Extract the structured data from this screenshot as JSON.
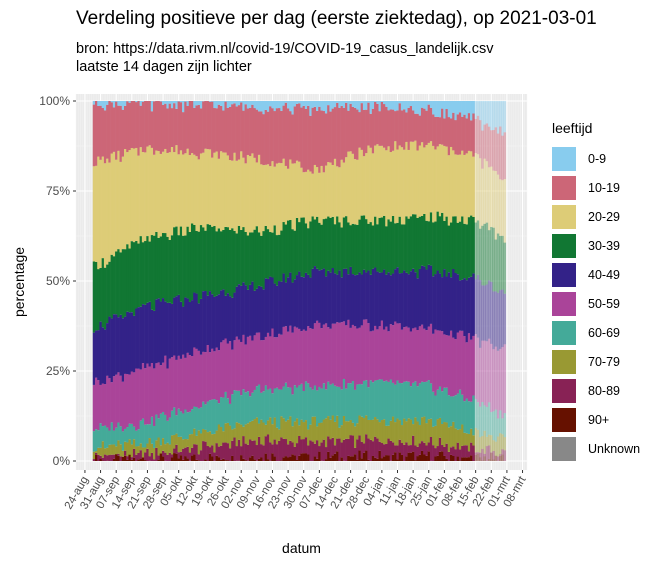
{
  "title": "Verdeling positieve per dag (eerste ziektedag), op 2021-03-01",
  "subtitle_lines": [
    "bron: https://data.rivm.nl/covid-19/COVID-19_casus_landelijk.csv",
    "laatste 14 dagen zijn lichter"
  ],
  "chart_data": {
    "type": "area",
    "xlabel": "datum",
    "ylabel": "percentage",
    "ylim": [
      0,
      100
    ],
    "y_ticks": [
      "0%",
      "25%",
      "50%",
      "75%",
      "100%"
    ],
    "x_ticks": [
      "24-aug",
      "31-aug",
      "07-sep",
      "14-sep",
      "21-sep",
      "28-sep",
      "05-okt",
      "12-okt",
      "19-okt",
      "26-okt",
      "02-nov",
      "09-nov",
      "16-nov",
      "23-nov",
      "30-nov",
      "07-dec",
      "14-dec",
      "21-dec",
      "28-dec",
      "04-jan",
      "11-jan",
      "18-jan",
      "25-jan",
      "01-feb",
      "08-feb",
      "15-feb",
      "22-feb",
      "01-mrt",
      "08-mrt"
    ],
    "x_range": [
      "2020-08-20",
      "2021-03-10"
    ],
    "data_start": "2020-08-28",
    "data_end": "2021-02-28",
    "lighter_from": "2021-02-15",
    "grid": true,
    "legend_position": "right",
    "legend_title": "leeftijd",
    "series_names": [
      "0-9",
      "10-19",
      "20-29",
      "30-39",
      "40-49",
      "50-59",
      "60-69",
      "70-79",
      "80-89",
      "90+",
      "Unknown"
    ],
    "colors": [
      "#88CCEE",
      "#CC6677",
      "#DDCC77",
      "#117733",
      "#332288",
      "#AA4499",
      "#44AA99",
      "#999933",
      "#882255",
      "#661100",
      "#888888"
    ],
    "anchor_dates": [
      "2020-08-28",
      "2020-09-20",
      "2020-10-15",
      "2020-11-10",
      "2020-12-05",
      "2020-12-31",
      "2021-01-25",
      "2021-02-15",
      "2021-02-28"
    ],
    "cumulative_upper_bounds": [
      {
        "name": "90+",
        "values": [
          0.5,
          0.5,
          1.0,
          1.5,
          1.3,
          1.5,
          1.5,
          1.0,
          0.8
        ]
      },
      {
        "name": "80-89",
        "values": [
          1.5,
          2.0,
          4.0,
          6.0,
          5.5,
          6.0,
          5.5,
          3.5,
          2.5
        ]
      },
      {
        "name": "70-79",
        "values": [
          4.0,
          5.0,
          8.0,
          11.0,
          11.0,
          12.0,
          11.5,
          8.0,
          6.0
        ]
      },
      {
        "name": "60-69",
        "values": [
          9.0,
          11.0,
          16.0,
          20.0,
          21.0,
          22.0,
          21.0,
          17.0,
          13.0
        ]
      },
      {
        "name": "50-59",
        "values": [
          22.0,
          26.0,
          31.0,
          35.0,
          38.0,
          38.0,
          37.0,
          34.0,
          31.0
        ]
      },
      {
        "name": "40-49",
        "values": [
          37.0,
          43.0,
          46.0,
          49.0,
          53.0,
          53.0,
          53.0,
          51.0,
          47.0
        ]
      },
      {
        "name": "30-39",
        "values": [
          54.0,
          62.0,
          65.0,
          64.0,
          67.0,
          67.0,
          68.0,
          67.0,
          62.0
        ]
      },
      {
        "name": "20-29",
        "values": [
          83.0,
          87.0,
          86.0,
          84.0,
          81.0,
          87.0,
          88.0,
          85.0,
          78.0
        ]
      },
      {
        "name": "10-19",
        "values": [
          99.5,
          99.5,
          99.0,
          98.5,
          98.0,
          98.5,
          97.5,
          95.0,
          91.0
        ]
      },
      {
        "name": "0-9",
        "values": [
          100,
          100,
          100,
          100,
          100,
          100,
          100,
          100,
          100
        ]
      }
    ]
  }
}
